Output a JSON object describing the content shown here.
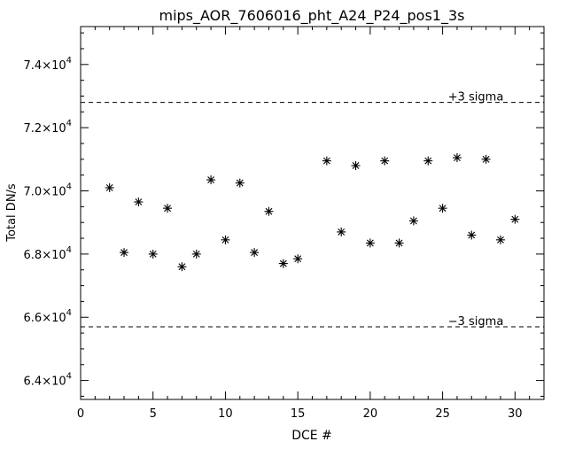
{
  "chart_data": {
    "type": "scatter",
    "title": "mips_AOR_7606016_pht_A24_P24_pos1_3s",
    "xlabel": "DCE #",
    "ylabel": "Total DN/s",
    "xlim": [
      0,
      32
    ],
    "ylim": [
      63400,
      75200
    ],
    "x_ticks": [
      0,
      5,
      10,
      15,
      20,
      25,
      30
    ],
    "x_tick_labels": [
      "0",
      "5",
      "10",
      "15",
      "20",
      "25",
      "30"
    ],
    "y_ticks": [
      {
        "value": 64000,
        "mantissa": "6.4",
        "exponent": "4"
      },
      {
        "value": 66000,
        "mantissa": "6.6",
        "exponent": "4"
      },
      {
        "value": 68000,
        "mantissa": "6.8",
        "exponent": "4"
      },
      {
        "value": 70000,
        "mantissa": "7.0",
        "exponent": "4"
      },
      {
        "value": 72000,
        "mantissa": "7.2",
        "exponent": "4"
      },
      {
        "value": 74000,
        "mantissa": "7.4",
        "exponent": "4"
      }
    ],
    "y_tick_base": "×10",
    "grid": false,
    "marker": "asterisk",
    "reference_lines": [
      {
        "label": "+3 sigma",
        "y": 72800
      },
      {
        "label": "−3 sigma",
        "y": 65700
      }
    ],
    "points": [
      {
        "x": 2,
        "y": 70100
      },
      {
        "x": 3,
        "y": 68050
      },
      {
        "x": 4,
        "y": 69650
      },
      {
        "x": 5,
        "y": 68000
      },
      {
        "x": 6,
        "y": 69450
      },
      {
        "x": 7,
        "y": 67600
      },
      {
        "x": 8,
        "y": 68000
      },
      {
        "x": 9,
        "y": 70350
      },
      {
        "x": 10,
        "y": 68450
      },
      {
        "x": 11,
        "y": 70250
      },
      {
        "x": 12,
        "y": 68050
      },
      {
        "x": 13,
        "y": 69350
      },
      {
        "x": 14,
        "y": 67700
      },
      {
        "x": 15,
        "y": 67850
      },
      {
        "x": 17,
        "y": 70950
      },
      {
        "x": 18,
        "y": 68700
      },
      {
        "x": 19,
        "y": 70800
      },
      {
        "x": 20,
        "y": 68350
      },
      {
        "x": 21,
        "y": 70950
      },
      {
        "x": 22,
        "y": 68350
      },
      {
        "x": 23,
        "y": 69050
      },
      {
        "x": 24,
        "y": 70950
      },
      {
        "x": 25,
        "y": 69450
      },
      {
        "x": 26,
        "y": 71050
      },
      {
        "x": 27,
        "y": 68600
      },
      {
        "x": 28,
        "y": 71000
      },
      {
        "x": 29,
        "y": 68450
      },
      {
        "x": 30,
        "y": 69100
      }
    ]
  }
}
